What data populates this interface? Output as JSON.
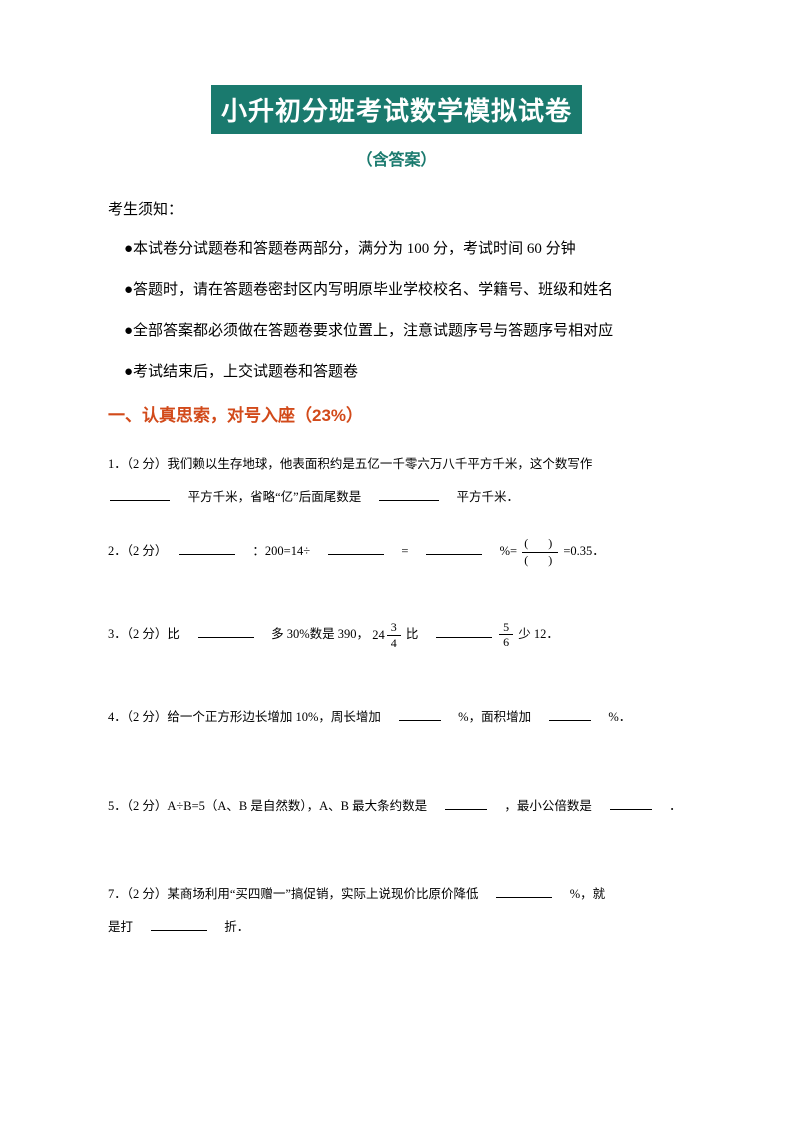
{
  "title": "小升初分班考试数学模拟试卷",
  "subtitle": "（含答案）",
  "notice_header": "考生须知：",
  "notices": [
    "●本试卷分试题卷和答题卷两部分，满分为 100 分，考试时间 60 分钟",
    "●答题时，请在答题卷密封区内写明原毕业学校校名、学籍号、班级和姓名",
    "●全部答案都必须做在答题卷要求位置上，注意试题序号与答题序号相对应",
    "●考试结束后，上交试题卷和答题卷"
  ],
  "section1": "一、认真思索，对号入座（23%）",
  "q1": {
    "pre": "1．（2 分）我们赖以生存地球，他表面积约是五亿一千零六万八千平方千米，这个数写作",
    "mid": "　平方千米，省略“亿”后面尾数是　",
    "post": "　平方千米．"
  },
  "q2": {
    "pre": "2．（2 分）　",
    "a": "　：200=14÷　",
    "b": "　=　",
    "c": "　%=",
    "d": "=0.35．"
  },
  "q3": {
    "pre": "3．（2 分）比　",
    "a": "　多 30%数是 390，",
    "frac1_whole": "24",
    "frac1_num": "3",
    "frac1_den": "4",
    "b": "比　",
    "frac2_num": "5",
    "frac2_den": "6",
    "c": "少 12．"
  },
  "q4": {
    "pre": "4．（2 分）给一个正方形边长增加 10%，周长增加　",
    "a": "　%，面积增加　",
    "b": "　%．"
  },
  "q5": {
    "pre": "5．（2 分）A÷B=5（A、B 是自然数），A、B 最大条约数是　",
    "a": "　，最小公倍数是　",
    "b": "　．"
  },
  "q7": {
    "pre": "7．（2 分）某商场利用“买四赠一”搞促销，实际上说现价比原价降低　",
    "a": "　%，就",
    "line2a": "是打　",
    "b": "　折．"
  },
  "colors": {
    "title_bg": "#1a7a6e",
    "title_fg": "#ffffff",
    "section_fg": "#d24a1a",
    "body_fg": "#000000",
    "page_bg": "#ffffff"
  }
}
